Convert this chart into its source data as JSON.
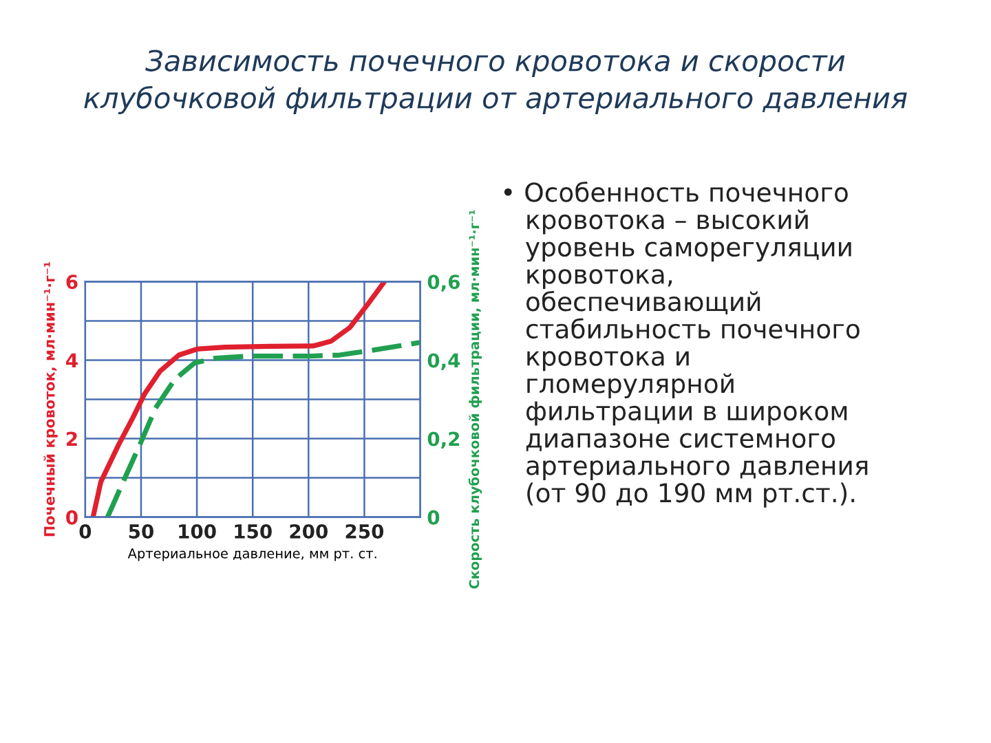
{
  "chart_data": {
    "type": "line",
    "title": "Зависимость почечного кровотока и скорости\nклубочковой фильтрации от артериального давления",
    "xlabel": "Артериальное давление, мм рт. ст.",
    "ylabel": "Почечный кровоток, мл·мин⁻¹·г⁻¹",
    "y2label": "Скорость клубочковой фильтрации, мл·мин⁻¹·г⁻¹",
    "xlim": [
      0,
      300
    ],
    "xticks": [
      0,
      50,
      100,
      150,
      200,
      250
    ],
    "ylim": [
      0,
      6
    ],
    "yticks": [
      0,
      {
        "value": 1,
        "label": null
      },
      2,
      {
        "value": 3,
        "label": null
      },
      4,
      {
        "value": 5,
        "label": null
      },
      6
    ],
    "y2lim": [
      0,
      0.6
    ],
    "y2ticks": [
      0,
      {
        "value": 0.2,
        "label": "0,2"
      },
      {
        "value": 0.4,
        "label": "0,4"
      },
      {
        "value": 0.6,
        "label": "0,6"
      }
    ],
    "grid": true,
    "legend": false,
    "marker": "none",
    "series": [
      {
        "color": "#e0202e",
        "line_style": "solid",
        "x": [
          7,
          14,
          30,
          43,
          53,
          67,
          84,
          100,
          125,
          166,
          204,
          220,
          237,
          253,
          268
        ],
        "values": [
          0,
          0.9,
          1.85,
          2.55,
          3.13,
          3.72,
          4.13,
          4.28,
          4.33,
          4.35,
          4.36,
          4.48,
          4.83,
          5.42,
          6.0
        ]
      },
      {
        "color": "#20a050",
        "line_style": "dashed",
        "axis": "y2",
        "x": [
          20,
          34,
          49,
          63,
          80,
          98,
          117,
          146,
          200,
          228,
          257,
          300
        ],
        "values": [
          0,
          0.09,
          0.185,
          0.278,
          0.35,
          0.393,
          0.405,
          0.41,
          0.41,
          0.413,
          0.425,
          0.445
        ]
      }
    ],
    "annotations": [
      "• Особенность почечного\n   кровотока – высокий\n   уровень саморегуляции\n   кровотока,\n   обеспечивающий\n   стабильность почечного\n   кровотока и\n   гломерулярной\n   фильтрации в широком\n   диапазоне системного\n   артериального давления\n   (от 90 до 190 мм рт.ст.)."
    ]
  }
}
